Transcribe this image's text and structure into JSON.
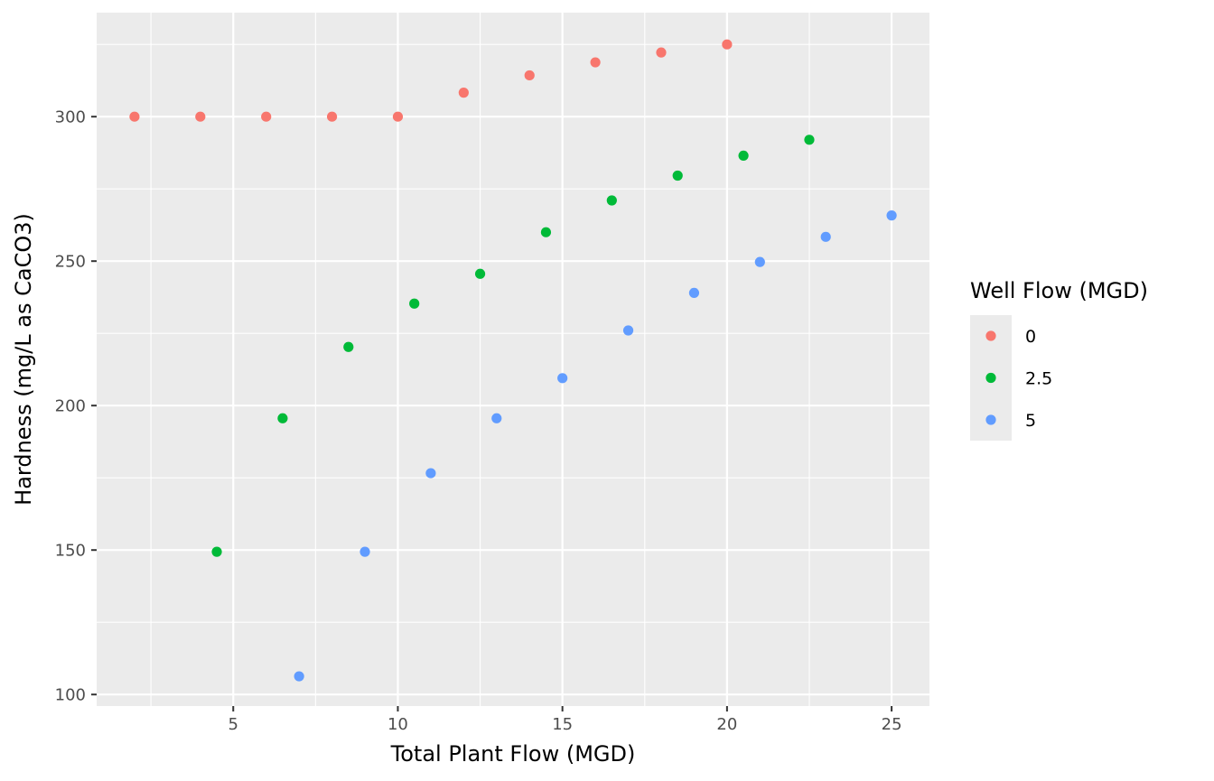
{
  "chart_data": {
    "type": "scatter",
    "title": "",
    "xlabel": "Total Plant Flow (MGD)",
    "ylabel": "Hardness (mg/L as CaCO3)",
    "xlim": [
      0.85,
      26.15
    ],
    "ylim": [
      96,
      336
    ],
    "x_ticks": [
      5,
      10,
      15,
      20,
      25
    ],
    "x_tick_labels": [
      "5",
      "10",
      "15",
      "20",
      "25"
    ],
    "y_ticks": [
      100,
      150,
      200,
      250,
      300
    ],
    "y_tick_labels": [
      "100",
      "150",
      "200",
      "250",
      "300"
    ],
    "grid": true,
    "legend": {
      "title": "Well Flow (MGD)",
      "position": "right"
    },
    "series": [
      {
        "name": "0",
        "color": "#F8766D",
        "points": [
          [
            2,
            300
          ],
          [
            4,
            300
          ],
          [
            6,
            300
          ],
          [
            8,
            300
          ],
          [
            10,
            300
          ],
          [
            12,
            308.3
          ],
          [
            14,
            314.3
          ],
          [
            16,
            318.8
          ],
          [
            18,
            322.2
          ],
          [
            20,
            325
          ]
        ]
      },
      {
        "name": "2.5",
        "color": "#00BA38",
        "points": [
          [
            4.5,
            149.4
          ],
          [
            6.5,
            195.6
          ],
          [
            8.5,
            220.3
          ],
          [
            10.5,
            235.3
          ],
          [
            12.5,
            245.6
          ],
          [
            14.5,
            260
          ],
          [
            16.5,
            271
          ],
          [
            18.5,
            279.6
          ],
          [
            20.5,
            286.5
          ],
          [
            22.5,
            292
          ]
        ]
      },
      {
        "name": "5",
        "color": "#619CFF",
        "points": [
          [
            7,
            106.3
          ],
          [
            9,
            149.4
          ],
          [
            11,
            176.6
          ],
          [
            13,
            195.6
          ],
          [
            15,
            209.5
          ],
          [
            17,
            226
          ],
          [
            19,
            239
          ],
          [
            21,
            249.7
          ],
          [
            23,
            258.4
          ],
          [
            25,
            265.8
          ]
        ]
      }
    ]
  }
}
